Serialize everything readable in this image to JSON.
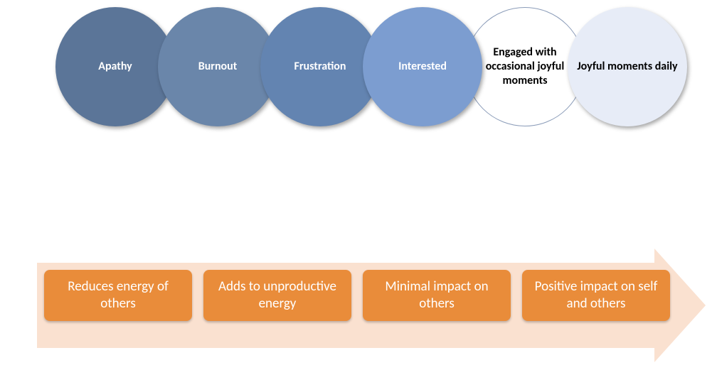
{
  "diagram": {
    "type": "infographic",
    "background_color": "#ffffff",
    "circles": {
      "diameter": 168,
      "overlap": 24,
      "font_size": 16,
      "font_weight": 700,
      "items": [
        {
          "label": "Apathy",
          "fill": "#5b7598",
          "text_color": "#ffffff",
          "shadow": true,
          "border": false
        },
        {
          "label": "Burnout",
          "fill": "#6a86aa",
          "text_color": "#ffffff",
          "shadow": true,
          "border": false
        },
        {
          "label": "Frustration",
          "fill": "#6384b1",
          "text_color": "#ffffff",
          "shadow": true,
          "border": false
        },
        {
          "label": "Interested",
          "fill": "#7c9dd0",
          "text_color": "#ffffff",
          "shadow": true,
          "border": false
        },
        {
          "label": "Engaged with\noccasional joyful moments",
          "fill": "#ffffff",
          "text_color": "#000000",
          "shadow": false,
          "border": true,
          "border_color": "#8a9bb8"
        },
        {
          "label": "Joyful moments daily",
          "fill": "#e7ecf7",
          "text_color": "#000000",
          "shadow": true,
          "border": false
        }
      ]
    },
    "arrow": {
      "body_color": "#fae1d0",
      "head_color": "#fae1d0",
      "body_width": 870,
      "body_height": 120,
      "head_width": 72
    },
    "impact_boxes": {
      "fill": "#e98c3a",
      "text_color": "#ffffff",
      "font_size": 19,
      "border_radius": 8,
      "height": 72,
      "items": [
        {
          "label": "Reduces energy of others"
        },
        {
          "label": "Adds to unproductive energy"
        },
        {
          "label": "Minimal impact on others"
        },
        {
          "label": "Positive impact  on self and others"
        }
      ]
    }
  }
}
